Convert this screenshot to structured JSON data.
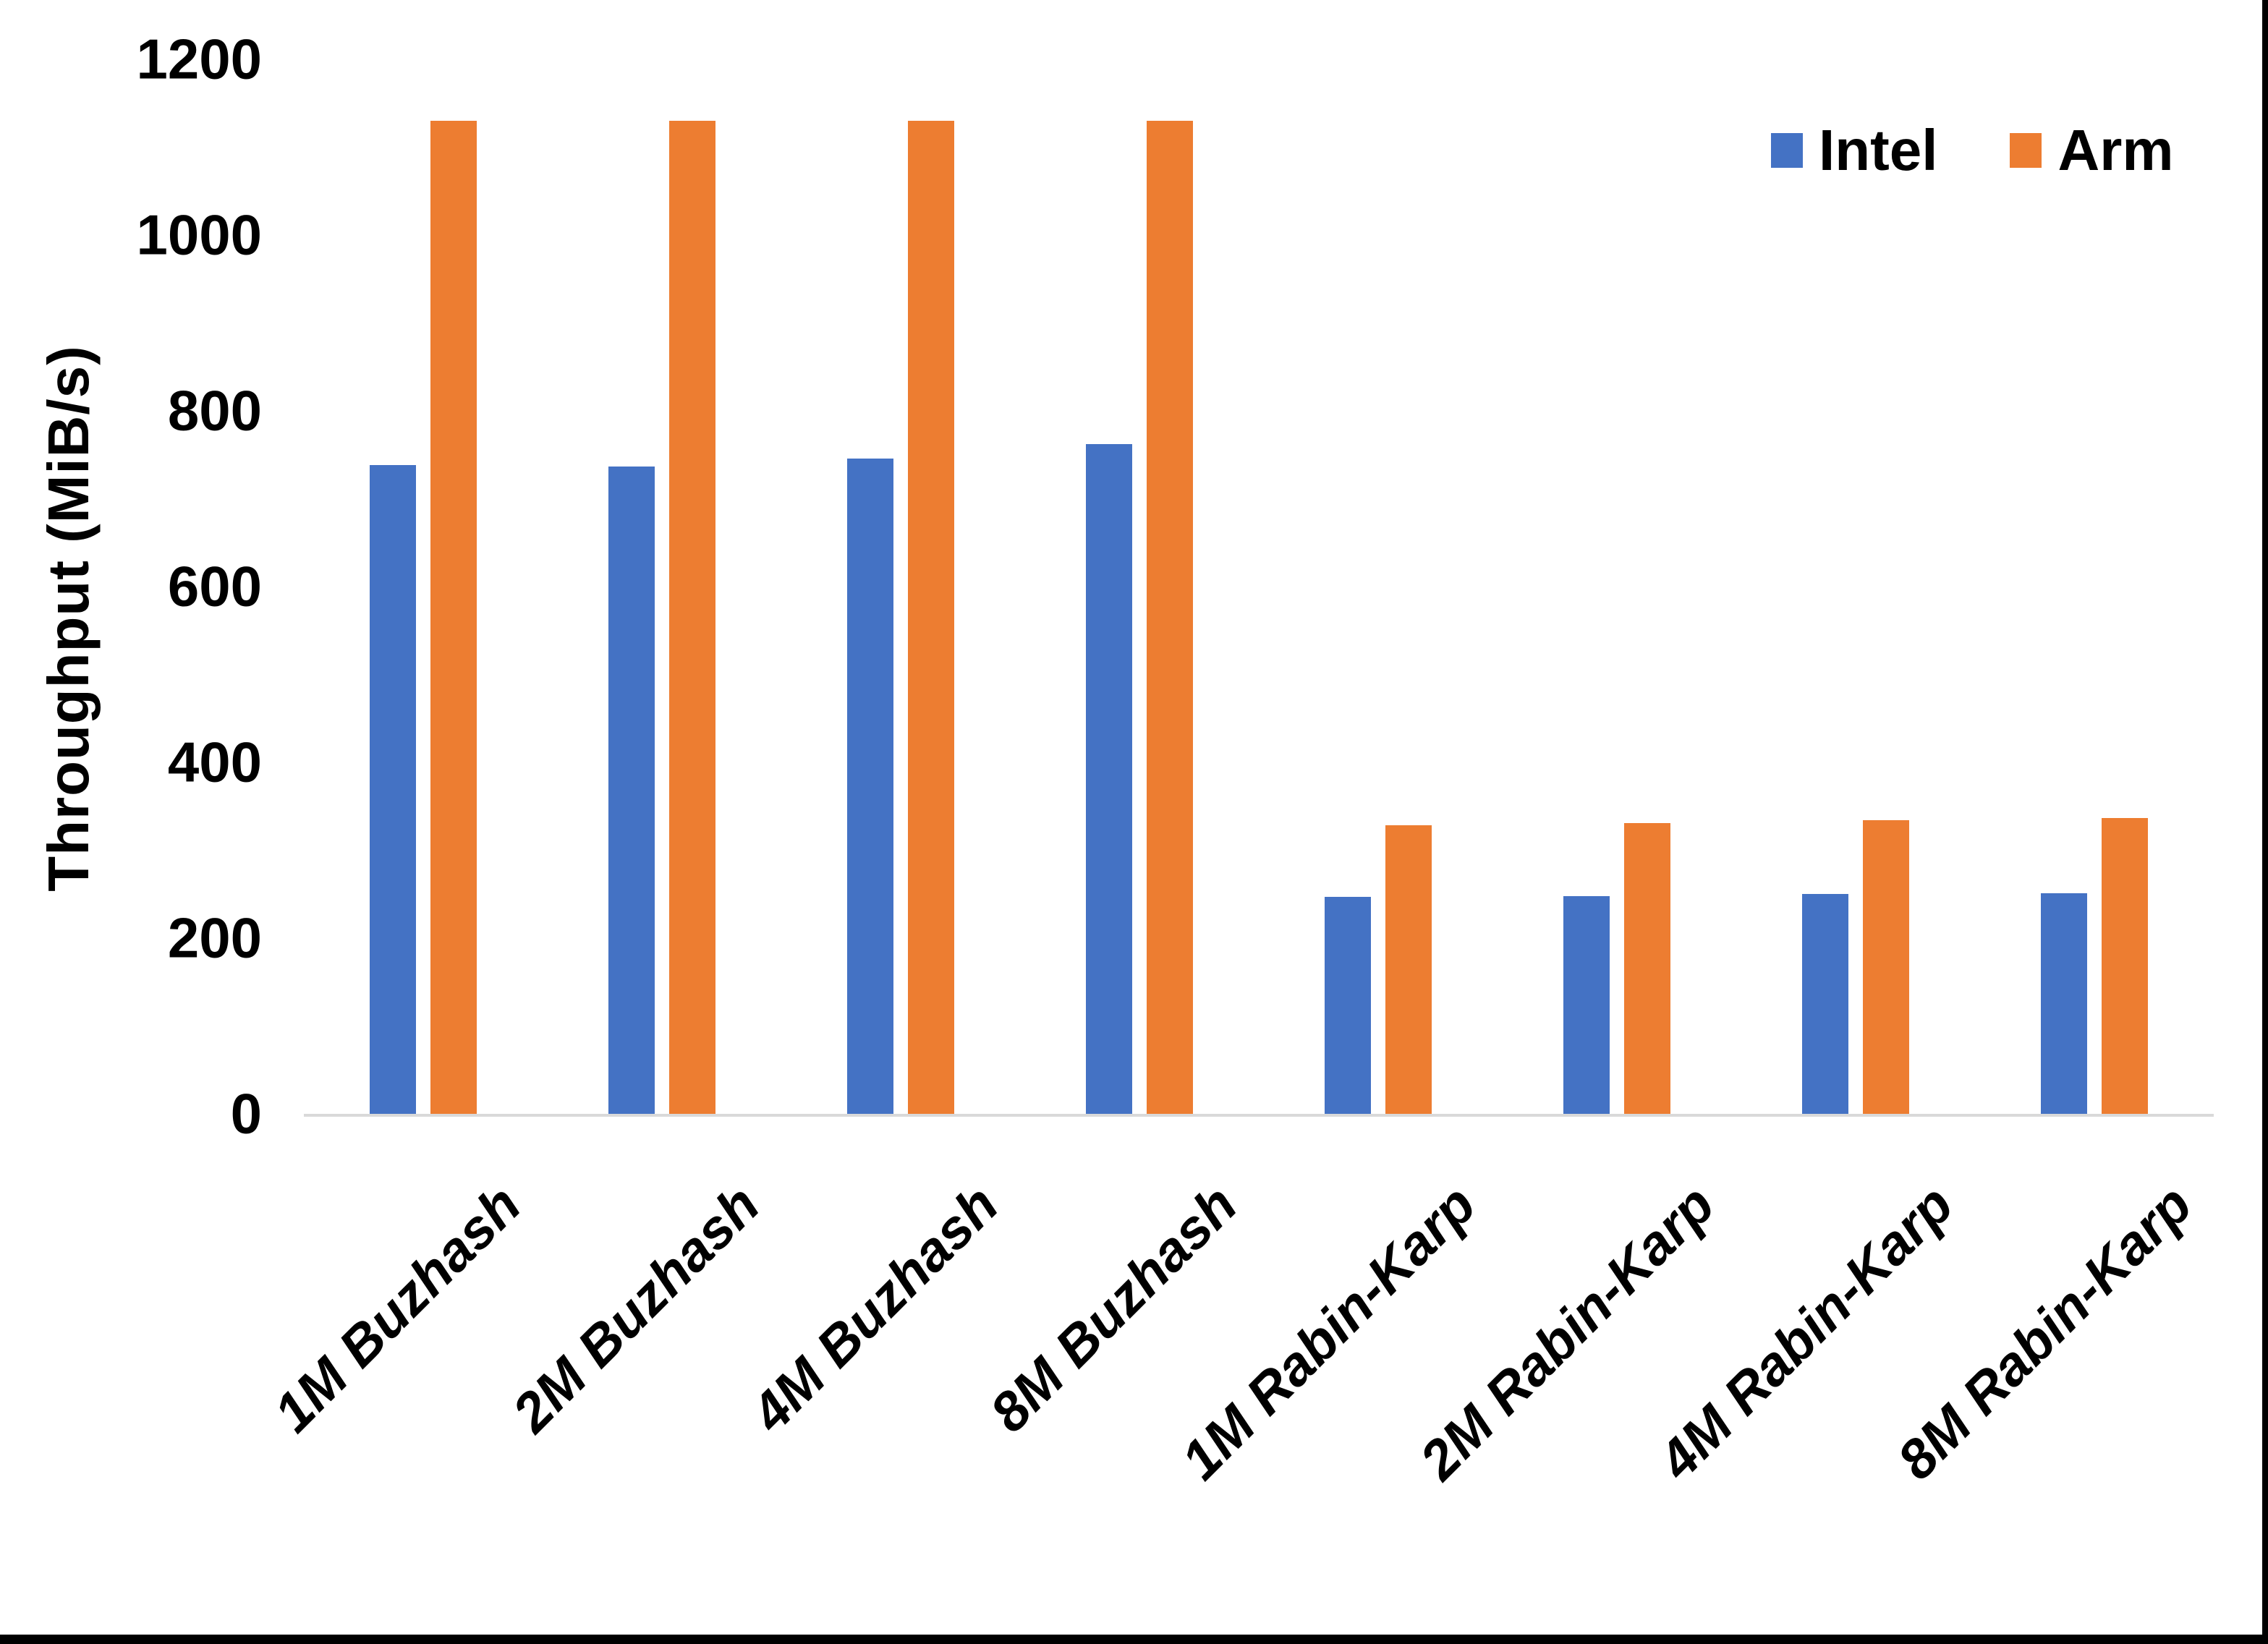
{
  "chart_data": {
    "type": "bar",
    "title": "",
    "xlabel": "",
    "ylabel": "Throughput (MiB/s)",
    "ylim": [
      0,
      1200
    ],
    "yticks": [
      0,
      200,
      400,
      600,
      800,
      1000,
      1200
    ],
    "grid": false,
    "legend_position": "top-right",
    "categories": [
      "1M Buzhash",
      "2M Buzhash",
      "4M Buzhash",
      "8M Buzhash",
      "1M Rabin-Karp",
      "2M Rabin-Karp",
      "4M Rabin-Karp",
      "8M Rabin-Karp"
    ],
    "series": [
      {
        "name": "Intel",
        "color": "#4472C4",
        "values": [
          738,
          737,
          746,
          762,
          247,
          248,
          250,
          251
        ]
      },
      {
        "name": "Arm",
        "color": "#ED7D31",
        "values": [
          1130,
          1130,
          1130,
          1130,
          328,
          331,
          334,
          337
        ]
      }
    ],
    "axis_line_color": "#D9D9D9",
    "text_color": "#000000"
  }
}
